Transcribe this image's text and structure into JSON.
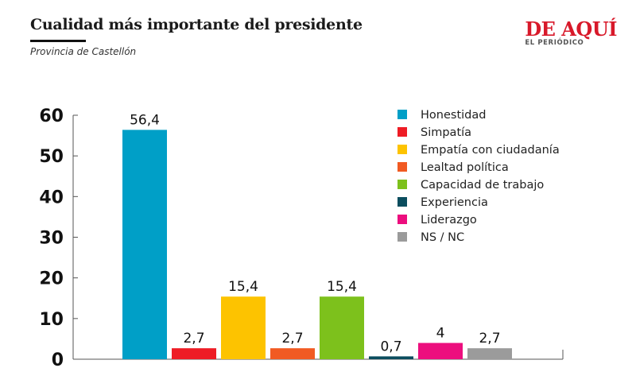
{
  "header": {
    "title": "Cualidad más importante del presidente",
    "subtitle": "Provincia de Castellón"
  },
  "logo": {
    "main": "DE AQUÍ",
    "sub": "EL PERIÓDICO"
  },
  "chart_data": {
    "type": "bar",
    "categories": [
      "Honestidad",
      "Simpatía",
      "Empatía con ciudadanía",
      "Lealtad política",
      "Capacidad de trabajo",
      "Experiencia",
      "Liderazgo",
      "NS / NC"
    ],
    "values": [
      56.4,
      2.7,
      15.4,
      2.7,
      15.4,
      0.7,
      4,
      2.7
    ],
    "data_labels": [
      "56,4",
      "2,7",
      "15,4",
      "2,7",
      "15,4",
      "0,7",
      "4",
      "2,7"
    ],
    "colors": [
      "#009fc7",
      "#ee1c25",
      "#fdc300",
      "#f15a22",
      "#7dc11c",
      "#0b4d5e",
      "#ec0e7e",
      "#9b9b9b"
    ],
    "ylim": [
      0,
      60
    ],
    "yticks": [
      "0",
      "10",
      "20",
      "30",
      "40",
      "50",
      "60"
    ],
    "grid": false,
    "legend_position": "top-right"
  }
}
